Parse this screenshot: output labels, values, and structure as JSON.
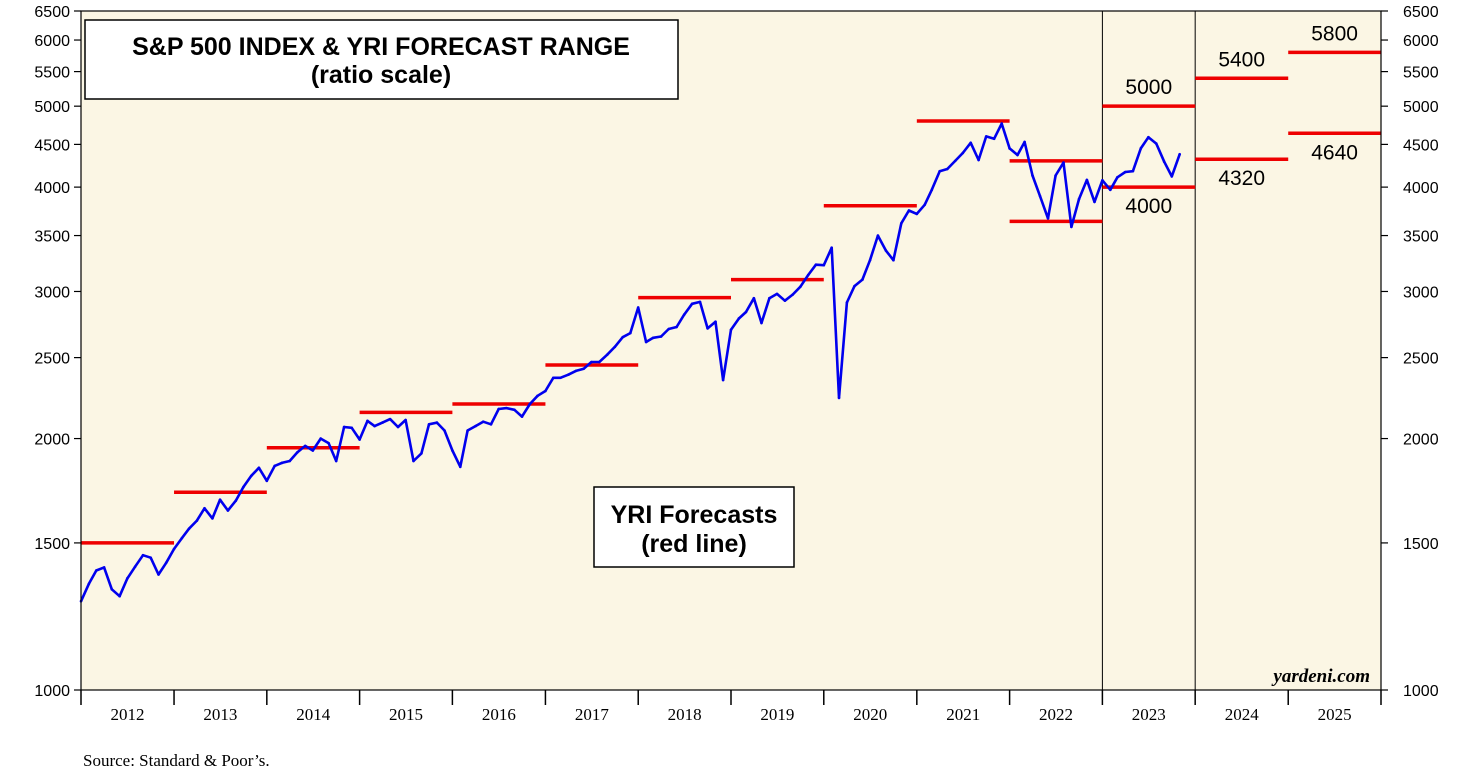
{
  "chart_data": {
    "type": "line",
    "title": "S&P 500 INDEX & YRI FORECAST RANGE",
    "subtitle": "(ratio scale)",
    "y_scale": "log",
    "ylim": [
      1000,
      6500
    ],
    "y_ticks": [
      1000,
      1500,
      2000,
      2500,
      3000,
      3500,
      4000,
      4500,
      5000,
      5500,
      6000,
      6500
    ],
    "xlim": [
      "2012-01-01",
      "2026-01-01"
    ],
    "x_tick_labels": [
      "2012",
      "2013",
      "2014",
      "2015",
      "2016",
      "2017",
      "2018",
      "2019",
      "2020",
      "2021",
      "2022",
      "2023",
      "2024",
      "2025"
    ],
    "background": "#fbf6e4",
    "grid": false,
    "vertical_markers": [
      "2023-01-01",
      "2024-01-01"
    ],
    "series": [
      {
        "color": "#0000ee",
        "points": [
          [
            "2012-01-01",
            1277
          ],
          [
            "2012-02-01",
            1340
          ],
          [
            "2012-03-01",
            1390
          ],
          [
            "2012-04-01",
            1402
          ],
          [
            "2012-05-01",
            1320
          ],
          [
            "2012-06-01",
            1295
          ],
          [
            "2012-07-01",
            1360
          ],
          [
            "2012-08-01",
            1405
          ],
          [
            "2012-09-01",
            1450
          ],
          [
            "2012-10-01",
            1440
          ],
          [
            "2012-11-01",
            1375
          ],
          [
            "2012-12-01",
            1420
          ],
          [
            "2013-01-01",
            1475
          ],
          [
            "2013-02-01",
            1520
          ],
          [
            "2013-03-01",
            1560
          ],
          [
            "2013-04-01",
            1595
          ],
          [
            "2013-05-01",
            1650
          ],
          [
            "2013-06-01",
            1605
          ],
          [
            "2013-07-01",
            1690
          ],
          [
            "2013-08-01",
            1640
          ],
          [
            "2013-09-01",
            1685
          ],
          [
            "2013-10-01",
            1750
          ],
          [
            "2013-11-01",
            1805
          ],
          [
            "2013-12-01",
            1845
          ],
          [
            "2014-01-01",
            1780
          ],
          [
            "2014-02-01",
            1855
          ],
          [
            "2014-03-01",
            1870
          ],
          [
            "2014-04-01",
            1880
          ],
          [
            "2014-05-01",
            1925
          ],
          [
            "2014-06-01",
            1960
          ],
          [
            "2014-07-01",
            1935
          ],
          [
            "2014-08-01",
            2000
          ],
          [
            "2014-09-01",
            1975
          ],
          [
            "2014-10-01",
            1880
          ],
          [
            "2014-11-01",
            2065
          ],
          [
            "2014-12-01",
            2060
          ],
          [
            "2015-01-01",
            1995
          ],
          [
            "2015-02-01",
            2100
          ],
          [
            "2015-03-01",
            2070
          ],
          [
            "2015-04-01",
            2090
          ],
          [
            "2015-05-01",
            2110
          ],
          [
            "2015-06-01",
            2065
          ],
          [
            "2015-07-01",
            2105
          ],
          [
            "2015-08-01",
            1880
          ],
          [
            "2015-09-01",
            1920
          ],
          [
            "2015-10-01",
            2080
          ],
          [
            "2015-11-01",
            2090
          ],
          [
            "2015-12-01",
            2045
          ],
          [
            "2016-01-01",
            1935
          ],
          [
            "2016-02-01",
            1850
          ],
          [
            "2016-03-01",
            2045
          ],
          [
            "2016-04-01",
            2070
          ],
          [
            "2016-05-01",
            2095
          ],
          [
            "2016-06-01",
            2080
          ],
          [
            "2016-07-01",
            2170
          ],
          [
            "2016-08-01",
            2175
          ],
          [
            "2016-09-01",
            2165
          ],
          [
            "2016-10-01",
            2125
          ],
          [
            "2016-11-01",
            2200
          ],
          [
            "2016-12-01",
            2250
          ],
          [
            "2017-01-01",
            2280
          ],
          [
            "2017-02-01",
            2365
          ],
          [
            "2017-03-01",
            2365
          ],
          [
            "2017-04-01",
            2385
          ],
          [
            "2017-05-01",
            2410
          ],
          [
            "2017-06-01",
            2425
          ],
          [
            "2017-07-01",
            2470
          ],
          [
            "2017-08-01",
            2470
          ],
          [
            "2017-09-01",
            2520
          ],
          [
            "2017-10-01",
            2575
          ],
          [
            "2017-11-01",
            2645
          ],
          [
            "2017-12-01",
            2675
          ],
          [
            "2018-01-01",
            2870
          ],
          [
            "2018-02-01",
            2610
          ],
          [
            "2018-03-01",
            2640
          ],
          [
            "2018-04-01",
            2650
          ],
          [
            "2018-05-01",
            2705
          ],
          [
            "2018-06-01",
            2720
          ],
          [
            "2018-07-01",
            2815
          ],
          [
            "2018-08-01",
            2900
          ],
          [
            "2018-09-01",
            2915
          ],
          [
            "2018-10-01",
            2710
          ],
          [
            "2018-11-01",
            2760
          ],
          [
            "2018-12-01",
            2350
          ],
          [
            "2019-01-01",
            2700
          ],
          [
            "2019-02-01",
            2785
          ],
          [
            "2019-03-01",
            2835
          ],
          [
            "2019-04-01",
            2945
          ],
          [
            "2019-05-01",
            2750
          ],
          [
            "2019-06-01",
            2945
          ],
          [
            "2019-07-01",
            2980
          ],
          [
            "2019-08-01",
            2925
          ],
          [
            "2019-09-01",
            2975
          ],
          [
            "2019-10-01",
            3040
          ],
          [
            "2019-11-01",
            3140
          ],
          [
            "2019-12-01",
            3230
          ],
          [
            "2020-01-01",
            3225
          ],
          [
            "2020-02-01",
            3385
          ],
          [
            "2020-03-01",
            2237
          ],
          [
            "2020-04-01",
            2910
          ],
          [
            "2020-05-01",
            3045
          ],
          [
            "2020-06-01",
            3100
          ],
          [
            "2020-07-01",
            3270
          ],
          [
            "2020-08-01",
            3500
          ],
          [
            "2020-09-01",
            3360
          ],
          [
            "2020-10-01",
            3270
          ],
          [
            "2020-11-01",
            3620
          ],
          [
            "2020-12-01",
            3750
          ],
          [
            "2021-01-01",
            3715
          ],
          [
            "2021-02-01",
            3810
          ],
          [
            "2021-03-01",
            3970
          ],
          [
            "2021-04-01",
            4180
          ],
          [
            "2021-05-01",
            4205
          ],
          [
            "2021-06-01",
            4300
          ],
          [
            "2021-07-01",
            4395
          ],
          [
            "2021-08-01",
            4520
          ],
          [
            "2021-09-01",
            4310
          ],
          [
            "2021-10-01",
            4600
          ],
          [
            "2021-11-01",
            4570
          ],
          [
            "2021-12-01",
            4766
          ],
          [
            "2022-01-01",
            4450
          ],
          [
            "2022-02-01",
            4370
          ],
          [
            "2022-03-01",
            4530
          ],
          [
            "2022-04-01",
            4130
          ],
          [
            "2022-05-01",
            3900
          ],
          [
            "2022-06-01",
            3670
          ],
          [
            "2022-07-01",
            4130
          ],
          [
            "2022-08-01",
            4280
          ],
          [
            "2022-09-01",
            3585
          ],
          [
            "2022-10-01",
            3870
          ],
          [
            "2022-11-01",
            4080
          ],
          [
            "2022-12-01",
            3840
          ],
          [
            "2023-01-01",
            4076
          ],
          [
            "2023-02-01",
            3970
          ],
          [
            "2023-03-01",
            4110
          ],
          [
            "2023-04-01",
            4170
          ],
          [
            "2023-05-01",
            4180
          ],
          [
            "2023-06-01",
            4450
          ],
          [
            "2023-07-01",
            4590
          ],
          [
            "2023-08-01",
            4510
          ],
          [
            "2023-09-01",
            4290
          ],
          [
            "2023-10-01",
            4120
          ],
          [
            "2023-11-01",
            4380
          ]
        ]
      }
    ],
    "forecasts": [
      {
        "start": "2012-01-01",
        "end": "2013-01-01",
        "value": 1500
      },
      {
        "start": "2013-01-01",
        "end": "2014-01-01",
        "value": 1725
      },
      {
        "start": "2014-01-01",
        "end": "2015-01-01",
        "value": 1950
      },
      {
        "start": "2015-01-01",
        "end": "2016-01-01",
        "value": 2150
      },
      {
        "start": "2016-01-01",
        "end": "2017-01-01",
        "value": 2200
      },
      {
        "start": "2017-01-01",
        "end": "2018-01-01",
        "value": 2450
      },
      {
        "start": "2018-01-01",
        "end": "2019-01-01",
        "value": 2950
      },
      {
        "start": "2019-01-01",
        "end": "2020-01-01",
        "value": 3100
      },
      {
        "start": "2020-01-01",
        "end": "2021-01-01",
        "value": 3800
      },
      {
        "start": "2021-01-01",
        "end": "2022-01-01",
        "value": 4800
      },
      {
        "start": "2022-01-01",
        "end": "2023-01-01",
        "value": 4300
      },
      {
        "start": "2022-01-01",
        "end": "2023-01-01",
        "value": 3640
      },
      {
        "start": "2023-01-01",
        "end": "2024-01-01",
        "value": 5000,
        "label": "5000"
      },
      {
        "start": "2023-01-01",
        "end": "2024-01-01",
        "value": 4000,
        "label": "4000"
      },
      {
        "start": "2024-01-01",
        "end": "2025-01-01",
        "value": 5400,
        "label": "5400"
      },
      {
        "start": "2024-01-01",
        "end": "2025-01-01",
        "value": 4320,
        "label": "4320"
      },
      {
        "start": "2025-01-01",
        "end": "2026-01-01",
        "value": 5800,
        "label": "5800"
      },
      {
        "start": "2025-01-01",
        "end": "2026-01-01",
        "value": 4640,
        "label": "4640"
      }
    ],
    "forecast_color": "#ee0000",
    "annotations": {
      "box_line1": "YRI Forecasts",
      "box_line2": "(red line)",
      "credit": "yardeni.com",
      "source": "Source: Standard & Poor’s."
    }
  }
}
